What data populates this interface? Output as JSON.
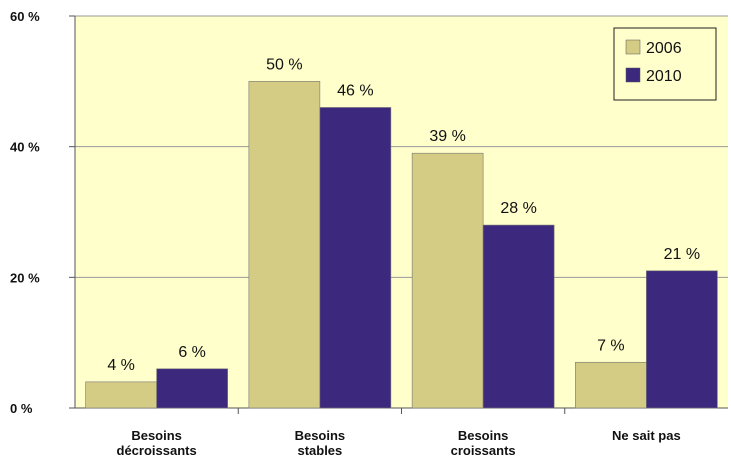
{
  "chart_data": {
    "type": "bar",
    "categories": [
      [
        "Besoins",
        "décroissants"
      ],
      [
        "Besoins",
        "stables"
      ],
      [
        "Besoins",
        "croissants"
      ],
      [
        "Ne sait pas"
      ]
    ],
    "series": [
      {
        "name": "2006",
        "color": "#D4CB84",
        "values": [
          4,
          50,
          39,
          7
        ],
        "labels": [
          "4 %",
          "50 %",
          "39 %",
          "7 %"
        ]
      },
      {
        "name": "2010",
        "color": "#3C287C",
        "values": [
          6,
          46,
          28,
          21
        ],
        "labels": [
          "6 %",
          "46 %",
          "28 %",
          "21 %"
        ]
      }
    ],
    "ylim": [
      0,
      60
    ],
    "yticks": [
      0,
      20,
      40,
      60
    ],
    "ytick_labels": [
      "0 %",
      "20 %",
      "40 %",
      "60 %"
    ],
    "plot_background": "#FFFFCC",
    "grid": true,
    "legend_position": "top-right",
    "title": "",
    "xlabel": "",
    "ylabel": ""
  }
}
